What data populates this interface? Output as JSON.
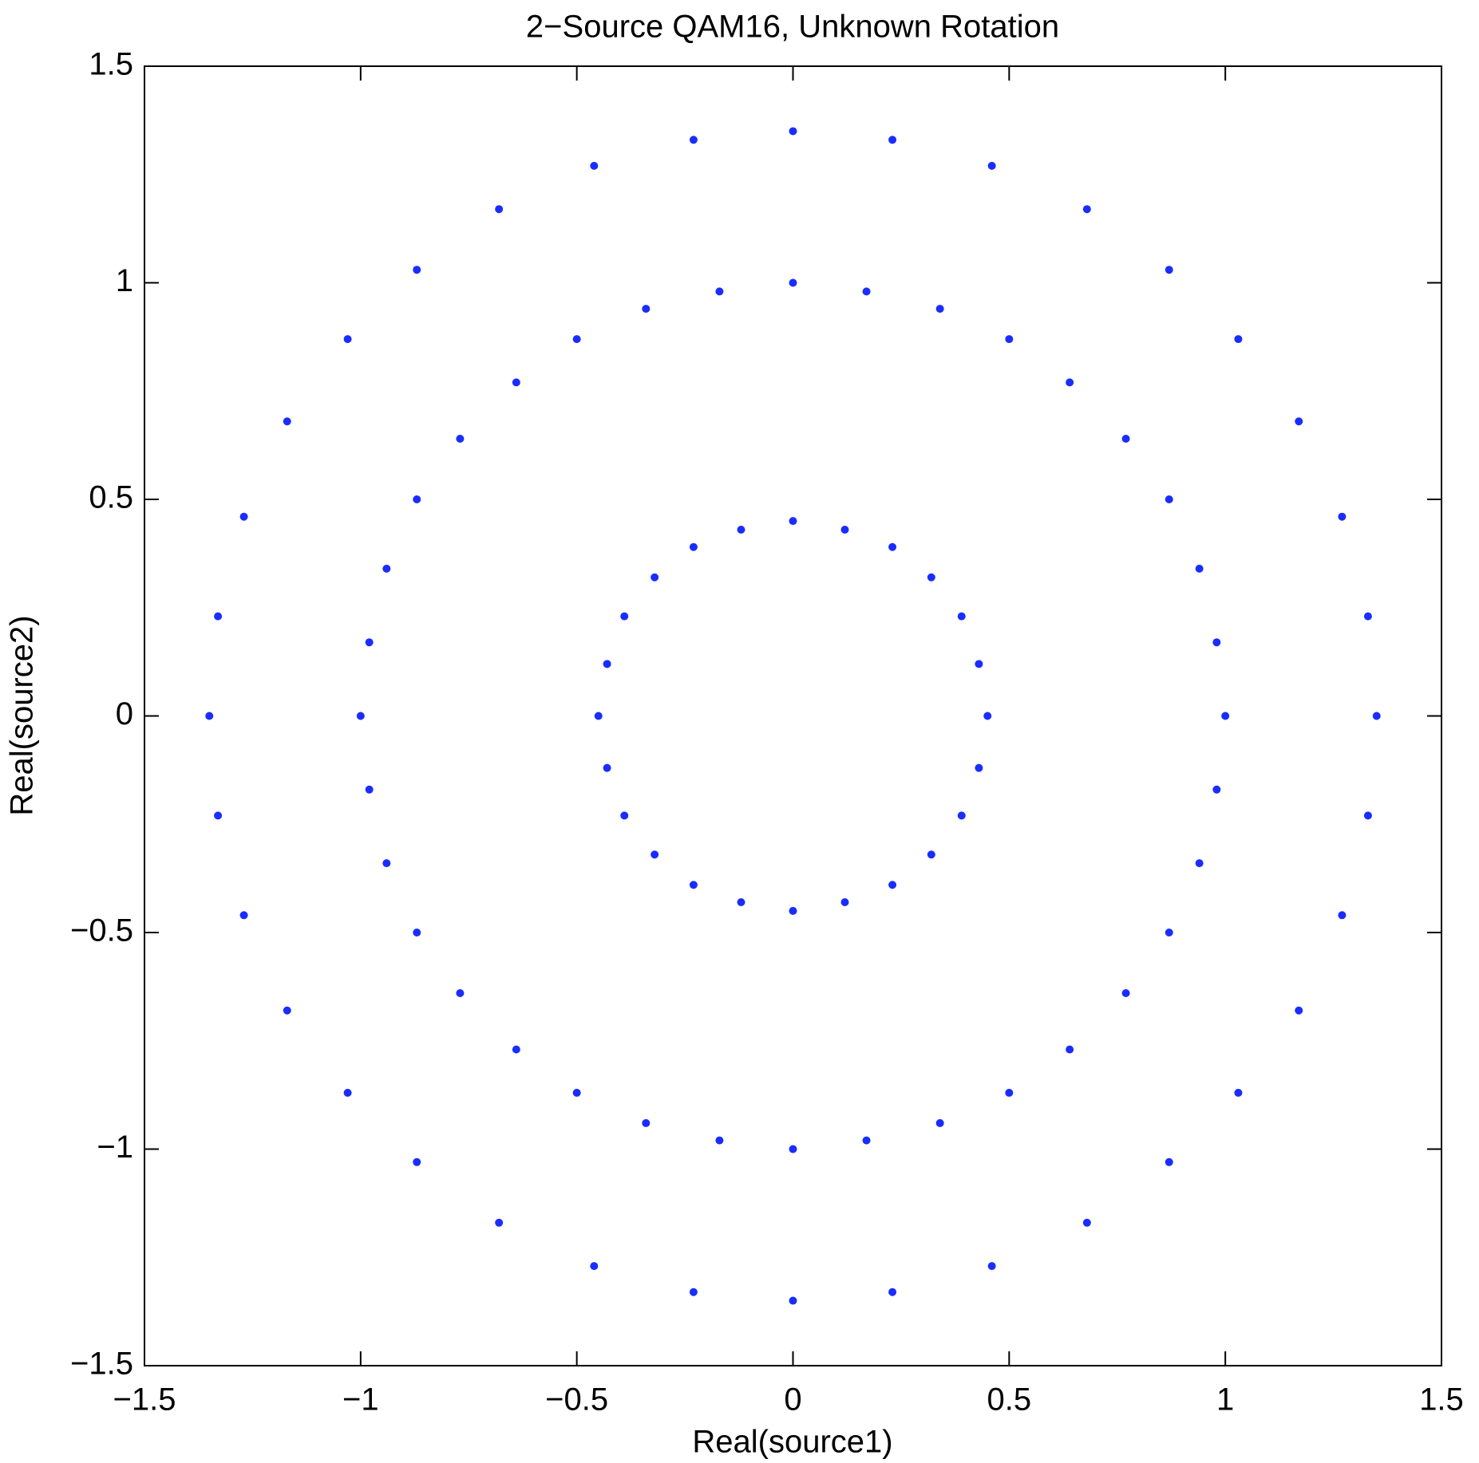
{
  "chart_data": {
    "type": "scatter",
    "title": "2−Source QAM16, Unknown Rotation",
    "xlabel": "Real(source1)",
    "ylabel": "Real(source2)",
    "color": "#1a2dff",
    "xlim": [
      -1.5,
      1.5
    ],
    "ylim": [
      -1.5,
      1.5
    ],
    "xticks": [
      {
        "value": -1.5,
        "label": "−1.5"
      },
      {
        "value": -1,
        "label": "−1"
      },
      {
        "value": -0.5,
        "label": "−0.5"
      },
      0,
      0.5,
      1,
      1.5
    ],
    "yticks": [
      {
        "value": -1.5,
        "label": "−1.5"
      },
      {
        "value": -1,
        "label": "−1"
      },
      {
        "value": -0.5,
        "label": "−0.5"
      },
      0,
      0.5,
      1,
      1.5
    ],
    "x": [
      0.45,
      0.43,
      0.39,
      0.32,
      0.23,
      0.12,
      0,
      -0.12,
      -0.23,
      -0.32,
      -0.39,
      -0.43,
      -0.45,
      -0.43,
      -0.39,
      -0.32,
      -0.23,
      -0.12,
      0,
      0.12,
      0.23,
      0.32,
      0.39,
      0.43,
      1,
      0.98,
      0.94,
      0.87,
      0.77,
      0.64,
      0.5,
      0.34,
      0.17,
      0,
      -0.17,
      -0.34,
      -0.5,
      -0.64,
      -0.77,
      -0.87,
      -0.94,
      -0.98,
      -1,
      -0.98,
      -0.94,
      -0.87,
      -0.77,
      -0.64,
      -0.5,
      -0.34,
      -0.17,
      0,
      0.17,
      0.34,
      0.5,
      0.64,
      0.77,
      0.87,
      0.94,
      0.98,
      1.35,
      1.33,
      1.27,
      1.17,
      1.03,
      0.87,
      0.68,
      0.46,
      0.23,
      0,
      -0.23,
      -0.46,
      -0.68,
      -0.87,
      -1.03,
      -1.17,
      -1.27,
      -1.33,
      -1.35,
      -1.33,
      -1.27,
      -1.17,
      -1.03,
      -0.87,
      -0.68,
      -0.46,
      -0.23,
      0,
      0.23,
      0.46,
      0.68,
      0.87,
      1.03,
      1.17,
      1.27,
      1.33
    ],
    "y": [
      0,
      0.12,
      0.23,
      0.32,
      0.39,
      0.43,
      0.45,
      0.43,
      0.39,
      0.32,
      0.23,
      0.12,
      0,
      -0.12,
      -0.23,
      -0.32,
      -0.39,
      -0.43,
      -0.45,
      -0.43,
      -0.39,
      -0.32,
      -0.23,
      -0.12,
      0,
      0.17,
      0.34,
      0.5,
      0.64,
      0.77,
      0.87,
      0.94,
      0.98,
      1,
      0.98,
      0.94,
      0.87,
      0.77,
      0.64,
      0.5,
      0.34,
      0.17,
      0,
      -0.17,
      -0.34,
      -0.5,
      -0.64,
      -0.77,
      -0.87,
      -0.94,
      -0.98,
      -1,
      -0.98,
      -0.94,
      -0.87,
      -0.77,
      -0.64,
      -0.5,
      -0.34,
      -0.17,
      0,
      0.23,
      0.46,
      0.68,
      0.87,
      1.03,
      1.17,
      1.27,
      1.33,
      1.35,
      1.33,
      1.27,
      1.17,
      1.03,
      0.87,
      0.68,
      0.46,
      0.23,
      0,
      -0.23,
      -0.46,
      -0.68,
      -0.87,
      -1.03,
      -1.17,
      -1.27,
      -1.33,
      -1.35,
      -1.33,
      -1.27,
      -1.17,
      -1.03,
      -0.87,
      -0.68,
      -0.46,
      -0.23
    ]
  }
}
